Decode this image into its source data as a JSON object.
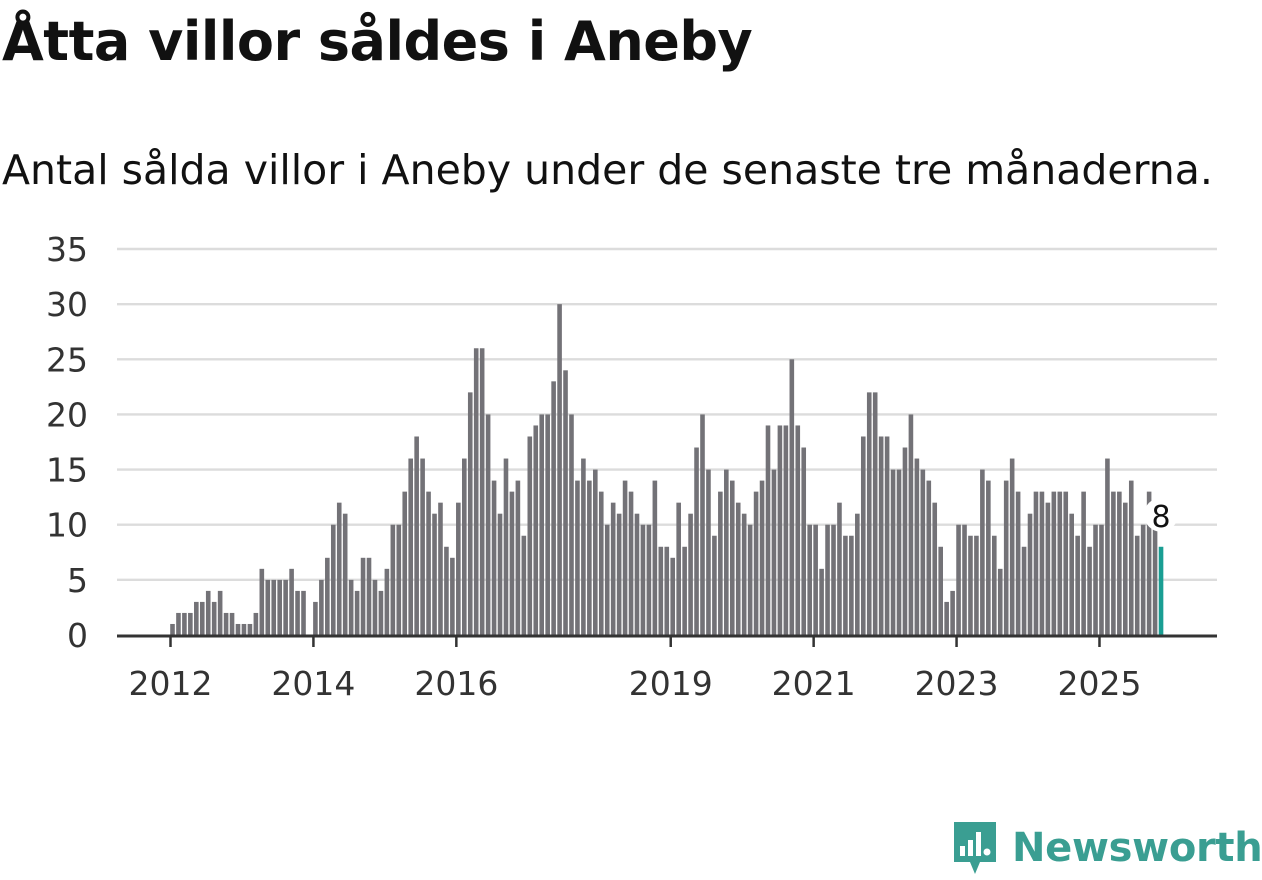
{
  "title": "Åtta villor såldes i Aneby",
  "subtitle": "Antal sålda villor i Aneby under de senaste tre månaderna.",
  "brand": {
    "name": "Newsworthy",
    "icon": "newsworthy-logo-icon",
    "color": "#3a9e92"
  },
  "colors": {
    "bar": "#737277",
    "highlight": "#1a9e93",
    "grid": "#dcdcdc",
    "axis": "#333333",
    "text": "#333333"
  },
  "chart_data": {
    "type": "bar",
    "title": "Åtta villor såldes i Aneby",
    "xlabel": "",
    "ylabel": "",
    "ylim": [
      0,
      35
    ],
    "yticks": [
      "0",
      "5",
      "10",
      "15",
      "20",
      "25",
      "30",
      "35"
    ],
    "xticks": [
      {
        "label": "2012",
        "index": 0
      },
      {
        "label": "2014",
        "index": 24
      },
      {
        "label": "2016",
        "index": 48
      },
      {
        "label": "2019",
        "index": 84
      },
      {
        "label": "2021",
        "index": 108
      },
      {
        "label": "2023",
        "index": 132
      },
      {
        "label": "2025",
        "index": 156
      }
    ],
    "period_start": "2012-01",
    "values": [
      1,
      2,
      2,
      2,
      3,
      3,
      4,
      3,
      4,
      2,
      2,
      1,
      1,
      1,
      2,
      6,
      5,
      5,
      5,
      5,
      6,
      4,
      4,
      0,
      3,
      5,
      7,
      10,
      12,
      11,
      5,
      4,
      7,
      7,
      5,
      4,
      6,
      10,
      10,
      13,
      16,
      18,
      16,
      13,
      11,
      12,
      8,
      7,
      12,
      16,
      22,
      26,
      26,
      20,
      14,
      11,
      16,
      13,
      14,
      9,
      18,
      19,
      20,
      20,
      23,
      30,
      24,
      20,
      14,
      16,
      14,
      15,
      13,
      10,
      12,
      11,
      14,
      13,
      11,
      10,
      10,
      14,
      8,
      8,
      7,
      12,
      8,
      11,
      17,
      20,
      15,
      9,
      13,
      15,
      14,
      12,
      11,
      10,
      13,
      14,
      19,
      15,
      19,
      19,
      25,
      19,
      17,
      10,
      10,
      6,
      10,
      10,
      12,
      9,
      9,
      11,
      18,
      22,
      22,
      18,
      18,
      15,
      15,
      17,
      20,
      16,
      15,
      14,
      12,
      8,
      3,
      4,
      10,
      10,
      9,
      9,
      15,
      14,
      9,
      6,
      14,
      16,
      13,
      8,
      11,
      13,
      13,
      12,
      13,
      13,
      13,
      11,
      9,
      13,
      8,
      10,
      10,
      16,
      13,
      13,
      12,
      14,
      9,
      10,
      13,
      10,
      8
    ],
    "highlight": {
      "index": 166,
      "label": "8"
    }
  }
}
